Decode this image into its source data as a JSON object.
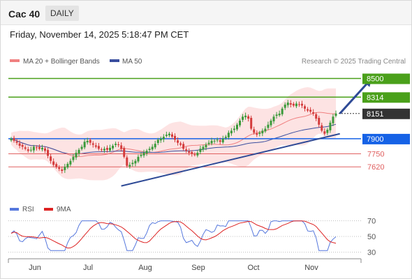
{
  "header": {
    "symbol": "Cac 40",
    "timeframe": "DAILY"
  },
  "datetime": "Friday, November 14, 2025 5:18:47 PM CET",
  "legend": {
    "ma20": "MA 20 + Bollinger Bands",
    "ma50": "MA 50",
    "source": "Research © 2025 Trading Central"
  },
  "rsi_legend": {
    "rsi": "RSI",
    "ma9": "9MA"
  },
  "colors": {
    "up": "#3a9a3a",
    "down": "#d43c3c",
    "green_level": "#4aa01a",
    "blue_level": "#1662e6",
    "red_level": "#e06060",
    "trend": "#2e4a96",
    "current": "#333333",
    "band_fill": "#fde3e3",
    "ma20": "#f08080",
    "ma50": "#3a4e9e",
    "rsi_line": "#5577dd",
    "rsi_ma": "#dd2222"
  },
  "chart_data": [
    {
      "type": "candlestick",
      "y_range": [
        7330,
        8580
      ],
      "months": [
        "Jun",
        "Jul",
        "Aug",
        "Sep",
        "Oct",
        "Nov"
      ],
      "levels": [
        {
          "value": 8500,
          "label": "8500",
          "kind": "target"
        },
        {
          "value": 8314,
          "label": "8314",
          "kind": "target"
        },
        {
          "value": 8151,
          "label": "8151",
          "kind": "current"
        },
        {
          "value": 7900,
          "label": "7900",
          "kind": "pivot"
        },
        {
          "value": 7750,
          "label": "7750",
          "kind": "support"
        },
        {
          "value": 7620,
          "label": "7620",
          "kind": "support"
        }
      ],
      "trendline": {
        "from": [
          0.32,
          7430
        ],
        "to": [
          0.94,
          7950
        ]
      },
      "projection": {
        "from": [
          0.94,
          8151
        ],
        "to": [
          1.03,
          8500
        ]
      },
      "closes": [
        7900,
        7880,
        7860,
        7830,
        7820,
        7800,
        7780,
        7790,
        7820,
        7810,
        7800,
        7810,
        7780,
        7730,
        7680,
        7640,
        7620,
        7600,
        7580,
        7620,
        7650,
        7680,
        7720,
        7760,
        7790,
        7820,
        7870,
        7880,
        7860,
        7840,
        7820,
        7800,
        7790,
        7800,
        7790,
        7810,
        7830,
        7850,
        7840,
        7800,
        7720,
        7630,
        7640,
        7660,
        7680,
        7720,
        7740,
        7760,
        7780,
        7800,
        7820,
        7850,
        7890,
        7900,
        7920,
        7940,
        7950,
        7920,
        7890,
        7860,
        7840,
        7800,
        7780,
        7760,
        7750,
        7740,
        7760,
        7800,
        7820,
        7840,
        7860,
        7880,
        7880,
        7890,
        7870,
        7900,
        7920,
        7960,
        7980,
        8000,
        8040,
        8080,
        8120,
        8130,
        8100,
        8000,
        7960,
        7940,
        7960,
        7980,
        8000,
        8040,
        8080,
        8120,
        8140,
        8150,
        8200,
        8240,
        8260,
        8240,
        8230,
        8250,
        8240,
        8230,
        8200,
        8180,
        8170,
        8150,
        8100,
        8040,
        7980,
        7950,
        7990,
        8060,
        8120,
        8151
      ]
    },
    {
      "type": "line",
      "name": "RSI",
      "y_ticks": [
        30,
        50,
        70
      ],
      "y_range": [
        25,
        75
      ]
    }
  ]
}
